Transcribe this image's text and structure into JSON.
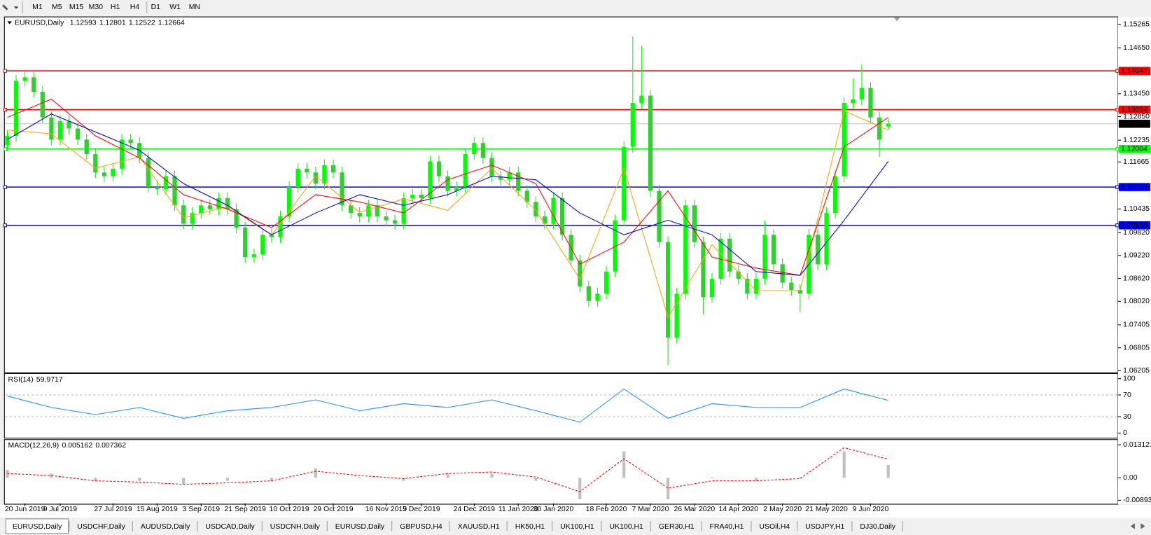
{
  "toolbar": {
    "timeframes": [
      "M1",
      "M5",
      "M15",
      "M30",
      "H1",
      "H4",
      "D1",
      "W1",
      "MN"
    ]
  },
  "chart_data": [
    {
      "type": "candlestick",
      "symbol": "EURUSD,Daily",
      "categories": [
        null,
        null,
        "20 Jun 2019",
        null,
        null,
        null,
        "9 Jul 2019",
        null,
        null,
        null,
        null,
        null,
        "27 Jul 2019",
        null,
        null,
        null,
        null,
        "15 Aug 2019",
        null,
        null,
        null,
        null,
        "3 Sep 2019",
        null,
        null,
        null,
        null,
        "21 Sep 2019",
        null,
        null,
        null,
        null,
        "10 Oct 2019",
        null,
        null,
        null,
        null,
        "29 Oct 2019",
        null,
        null,
        null,
        null,
        null,
        "16 Nov 2019",
        null,
        null,
        null,
        "5 Dec 2019",
        null,
        null,
        null,
        null,
        null,
        "24 Dec 2019",
        null,
        null,
        null,
        null,
        "11 Jan 2020",
        null,
        null,
        null,
        "30 Jan 2020",
        null,
        null,
        null,
        null,
        null,
        "18 Feb 2020",
        null,
        null,
        null,
        null,
        "7 Mar 2020",
        null,
        null,
        null,
        null,
        "26 Mar 2020",
        null,
        null,
        null,
        null,
        "14 Apr 2020",
        null,
        null,
        null,
        null,
        "2 May 2020",
        null,
        null,
        null,
        null,
        "21 May 2020",
        null,
        null,
        null,
        null,
        "9 Jun 2020",
        null,
        null
      ],
      "open": [
        1.121,
        1.1235,
        1.1379,
        1.1388,
        1.135,
        1.1283,
        1.1225,
        1.1273,
        1.1254,
        1.1225,
        1.1187,
        1.1139,
        1.1129,
        1.1149,
        1.1225,
        1.1216,
        1.1177,
        1.1101,
        1.1095,
        1.1129,
        1.1053,
        1.1005,
        1.1033,
        1.1053,
        1.1043,
        1.1072,
        1.1043,
        1.0995,
        1.0918,
        1.0925,
        1.0976,
        1.097,
        1.1024,
        1.1101,
        1.1149,
        1.1139,
        1.111,
        1.1158,
        1.1139,
        1.1053,
        1.1033,
        1.1024,
        1.1053,
        1.1024,
        1.1014,
        1.1005,
        1.1072,
        1.1081,
        1.1072,
        1.1168,
        1.1129,
        1.1091,
        1.1101,
        1.1187,
        1.1216,
        1.1177,
        1.1129,
        1.112,
        1.1139,
        1.1091,
        1.1062,
        1.1024,
        1.1005,
        1.1072,
        1.0976,
        1.0909,
        1.0841,
        1.0803,
        1.0822,
        1.088,
        1.1014,
        1.1206,
        1.1321,
        1.134,
        1.1091,
        1.0957,
        1.0707,
        1.0822,
        1.1053,
        1.0957,
        1.0813,
        1.0861,
        1.0966,
        1.088,
        1.0861,
        1.0822,
        1.0861,
        1.0976,
        1.0899,
        1.0851,
        1.0832,
        1.0822,
        1.0976,
        1.0899,
        1.1033,
        1.1129,
        1.1321,
        1.133,
        1.136,
        1.1283,
        1.12593
      ],
      "high": [
        1.125,
        1.1394,
        1.1403,
        1.1403,
        1.1365,
        1.1298,
        1.1288,
        1.1288,
        1.1269,
        1.124,
        1.1202,
        1.1154,
        1.1164,
        1.124,
        1.124,
        1.1231,
        1.1192,
        1.1116,
        1.1144,
        1.1144,
        1.1068,
        1.1048,
        1.1068,
        1.1068,
        1.1087,
        1.1087,
        1.1058,
        1.101,
        1.094,
        1.0991,
        1.0991,
        1.1039,
        1.1116,
        1.1164,
        1.1164,
        1.1154,
        1.1173,
        1.1173,
        1.1154,
        1.1068,
        1.1048,
        1.1068,
        1.1068,
        1.1039,
        1.1029,
        1.1087,
        1.1096,
        1.1096,
        1.1183,
        1.1183,
        1.1144,
        1.1116,
        1.1202,
        1.1231,
        1.1231,
        1.1192,
        1.1144,
        1.1154,
        1.1154,
        1.1106,
        1.1077,
        1.1039,
        1.1087,
        1.1087,
        1.0991,
        1.0924,
        1.0856,
        1.0837,
        1.0895,
        1.1029,
        1.1221,
        1.1495,
        1.147,
        1.1355,
        1.1106,
        1.0972,
        1.0837,
        1.1068,
        1.1068,
        1.0972,
        1.0876,
        1.0981,
        1.0981,
        1.0895,
        1.0876,
        1.0876,
        1.1014,
        1.0991,
        1.0914,
        1.0866,
        1.0847,
        1.0991,
        1.0991,
        1.1048,
        1.1144,
        1.1336,
        1.1385,
        1.1422,
        1.1375,
        1.1298,
        1.12801
      ],
      "low": [
        1.1195,
        1.122,
        1.1364,
        1.1335,
        1.1268,
        1.121,
        1.121,
        1.1239,
        1.121,
        1.1172,
        1.1124,
        1.1114,
        1.1114,
        1.1134,
        1.1201,
        1.1162,
        1.1086,
        1.108,
        1.108,
        1.1038,
        1.099,
        1.099,
        1.1018,
        1.1028,
        1.1028,
        1.1028,
        1.098,
        1.0903,
        1.0903,
        1.091,
        1.0955,
        1.0955,
        1.1009,
        1.1086,
        1.1124,
        1.1095,
        1.1095,
        1.1124,
        1.1038,
        1.1018,
        1.1009,
        1.1009,
        1.1009,
        1.0999,
        1.099,
        1.099,
        1.1057,
        1.1057,
        1.1057,
        1.1114,
        1.1076,
        1.1076,
        1.1086,
        1.1172,
        1.1162,
        1.1114,
        1.1105,
        1.1105,
        1.1076,
        1.1047,
        1.1009,
        1.099,
        1.099,
        1.0961,
        1.0894,
        1.0826,
        1.0788,
        1.0788,
        1.0807,
        1.0865,
        1.0999,
        1.1191,
        1.1306,
        1.1076,
        1.0942,
        1.0636,
        1.0692,
        1.0807,
        1.0942,
        1.0768,
        1.0798,
        1.0846,
        1.0865,
        1.0846,
        1.0807,
        1.0807,
        1.0846,
        1.0884,
        1.0836,
        1.0817,
        1.0775,
        1.0807,
        1.0884,
        1.0884,
        1.1018,
        1.1114,
        1.1306,
        1.1315,
        1.1268,
        1.118,
        1.12522
      ],
      "close": [
        1.1235,
        1.1379,
        1.1388,
        1.135,
        1.1283,
        1.1225,
        1.1273,
        1.1254,
        1.1225,
        1.1187,
        1.1139,
        1.1129,
        1.1149,
        1.1225,
        1.1216,
        1.1177,
        1.1101,
        1.1095,
        1.1129,
        1.1053,
        1.1005,
        1.1033,
        1.1053,
        1.1043,
        1.1072,
        1.1043,
        1.0995,
        1.0918,
        1.0925,
        1.0976,
        1.097,
        1.1024,
        1.1101,
        1.1149,
        1.1139,
        1.111,
        1.1158,
        1.1139,
        1.1053,
        1.1033,
        1.1024,
        1.1053,
        1.1024,
        1.1014,
        1.1005,
        1.1072,
        1.1081,
        1.1072,
        1.1168,
        1.1129,
        1.1091,
        1.1101,
        1.1187,
        1.1216,
        1.1177,
        1.1129,
        1.112,
        1.1139,
        1.1091,
        1.1062,
        1.1024,
        1.1005,
        1.1072,
        1.0976,
        1.0909,
        1.0841,
        1.0803,
        1.0822,
        1.088,
        1.1014,
        1.1206,
        1.1321,
        1.134,
        1.1091,
        1.0957,
        1.0707,
        1.0822,
        1.1053,
        1.0957,
        1.0813,
        1.0861,
        1.0966,
        1.088,
        1.0861,
        1.0822,
        1.0861,
        1.0976,
        1.0899,
        1.0851,
        1.0832,
        1.0822,
        1.0976,
        1.0899,
        1.1033,
        1.1129,
        1.1321,
        1.133,
        1.136,
        1.1283,
        1.1225,
        1.12664
      ],
      "up_color": "#00ff00",
      "down_color": "#2fd12f",
      "price_line_color": "#c0c0c0",
      "moving_averages": [
        {
          "color": "#ffa500",
          "x": [
            0,
            5,
            10,
            15,
            20,
            25,
            30,
            35,
            40,
            45,
            50,
            55,
            60,
            65,
            70,
            75,
            80,
            85,
            90,
            95,
            100
          ],
          "values": [
            1.125,
            1.124,
            1.115,
            1.118,
            1.102,
            1.105,
            1.0975,
            1.113,
            1.1035,
            1.107,
            1.104,
            1.115,
            1.104,
            1.086,
            1.115,
            1.076,
            1.095,
            1.083,
            1.083,
            1.13,
            1.125
          ]
        },
        {
          "color": "#ff0000",
          "x": [
            0,
            5,
            10,
            15,
            20,
            25,
            30,
            35,
            40,
            45,
            50,
            55,
            60,
            65,
            70,
            75,
            80,
            85,
            90,
            95,
            100
          ],
          "values": [
            1.1283,
            1.1331,
            1.1235,
            1.1177,
            1.1081,
            1.1043,
            1.0995,
            1.1081,
            1.1062,
            1.1033,
            1.112,
            1.1158,
            1.111,
            1.0899,
            1.0957,
            1.1091,
            1.0918,
            1.0889,
            1.087,
            1.1206,
            1.1283
          ]
        },
        {
          "color": "#0000cd",
          "x": [
            0,
            5,
            10,
            15,
            20,
            25,
            30,
            35,
            40,
            45,
            50,
            55,
            60,
            65,
            70,
            75,
            80,
            85,
            90,
            95,
            100
          ],
          "values": [
            1.1225,
            1.1292,
            1.1245,
            1.1197,
            1.111,
            1.1053,
            1.0976,
            1.1033,
            1.1081,
            1.1053,
            1.1081,
            1.1129,
            1.112,
            1.1033,
            1.0976,
            1.1014,
            1.0976,
            1.088,
            1.087,
            1.1014,
            1.1168
          ]
        }
      ],
      "levels": [
        {
          "value": 1.14047,
          "color": "#ff0000"
        },
        {
          "value": 1.13034,
          "color": "#ff0000"
        },
        {
          "value": 1.12004,
          "color": "#00ff00"
        },
        {
          "value": 1.11009,
          "color": "#0000ff"
        },
        {
          "value": 1.10008,
          "color": "#0000ff"
        }
      ],
      "ylim": [
        1.0617,
        1.1544
      ],
      "yticks": [
        1.15265,
        {
          "value": 1.1465,
          "label": "1.14650"
        },
        {
          "value": 1.1345,
          "label": "1.13450"
        },
        {
          "value": 1.1285,
          "label": "1.12850"
        },
        1.12235,
        1.11665,
        1.10435,
        {
          "value": 1.0982,
          "label": "1.09820"
        },
        {
          "value": 1.0922,
          "label": "1.09220"
        },
        {
          "value": 1.0862,
          "label": "1.08620"
        },
        {
          "value": 1.0802,
          "label": "1.08020"
        },
        1.07405,
        1.06805,
        1.06205
      ]
    },
    {
      "type": "line",
      "title": "RSI(14)",
      "color": "#1e90ff",
      "x": [
        0,
        5,
        10,
        15,
        20,
        25,
        30,
        35,
        40,
        45,
        50,
        55,
        60,
        65,
        70,
        75,
        80,
        85,
        90,
        95,
        100
      ],
      "values": [
        68,
        47,
        34,
        47,
        27,
        41,
        47,
        61,
        41,
        54,
        47,
        61,
        41,
        20,
        81,
        27,
        54,
        47,
        47,
        81,
        59.9717
      ],
      "levels": [
        30,
        70
      ],
      "ylim": [
        -8,
        108
      ],
      "yticks": [
        0,
        30,
        70,
        100
      ]
    },
    {
      "type": "macd",
      "title": "MACD(12,26,9)",
      "x": [
        0,
        5,
        10,
        15,
        20,
        25,
        30,
        35,
        40,
        45,
        50,
        55,
        60,
        65,
        70,
        75,
        80,
        85,
        90,
        95,
        100
      ],
      "histogram": [
        0.0032,
        0.0017,
        -0.0012,
        -0.0012,
        -0.0026,
        -0.0012,
        -0.0012,
        0.0038,
        0.0003,
        -0.0012,
        0.0017,
        0.0017,
        -0.0012,
        -0.0085,
        0.0105,
        -0.0085,
        0.0003,
        -0.0012,
        0.0003,
        0.0105,
        0.005162
      ],
      "signal": [
        0.0017,
        0.0009,
        -0.0012,
        -0.0017,
        -0.0026,
        -0.002,
        -0.0012,
        0.0026,
        0.0009,
        -0.0003,
        0.0017,
        0.0023,
        0.0003,
        -0.0055,
        0.0076,
        -0.0041,
        -0.0012,
        -0.0012,
        -0.0003,
        0.012,
        0.007362
      ],
      "histogram_color": "#c0c0c0",
      "signal_color": "#ff0000",
      "ylim": [
        -0.0102,
        0.0149
      ],
      "yticks": [
        0.013121,
        {
          "value": 0,
          "label": "0.00"
        },
        -0.008933
      ]
    }
  ],
  "tabs": [
    "EURUSD,Daily",
    "USDCHF,Daily",
    "AUDUSD,Daily",
    "USDCAD,Daily",
    "USDCNH,Daily",
    "EURUSD,Daily",
    "GBPUSD,H4",
    "XAUUSD,H1",
    "HK50,H1",
    "UK100,H1",
    "UK100,H1",
    "GER30,H1",
    "FRA40,H1",
    "USOil,H4",
    "USDJPY,H1",
    "DJ30,Daily"
  ]
}
